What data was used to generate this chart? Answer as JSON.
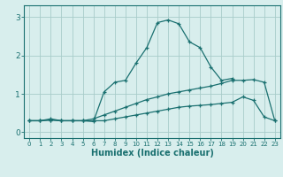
{
  "xlabel": "Humidex (Indice chaleur)",
  "background_color": "#d8eeed",
  "grid_color": "#a8ccca",
  "line_color": "#1a7070",
  "x_values": [
    0,
    1,
    2,
    3,
    4,
    5,
    6,
    7,
    8,
    9,
    10,
    11,
    12,
    13,
    14,
    15,
    16,
    17,
    18,
    19,
    20,
    21,
    22,
    23
  ],
  "line1": [
    0.3,
    0.3,
    0.35,
    0.3,
    0.3,
    0.3,
    0.28,
    1.05,
    1.3,
    1.35,
    1.8,
    2.2,
    2.85,
    2.92,
    2.82,
    2.35,
    2.2,
    1.7,
    1.35,
    1.4,
    null,
    null,
    null,
    null
  ],
  "line2": [
    0.3,
    0.3,
    0.32,
    0.3,
    0.3,
    0.3,
    0.35,
    0.45,
    0.55,
    0.65,
    0.75,
    0.85,
    0.92,
    1.0,
    1.05,
    1.1,
    1.15,
    1.2,
    1.27,
    1.35,
    1.35,
    1.37,
    1.3,
    0.3
  ],
  "line3": [
    0.3,
    0.3,
    0.32,
    0.3,
    0.3,
    0.3,
    0.3,
    0.3,
    0.35,
    0.4,
    0.45,
    0.5,
    0.55,
    0.6,
    0.65,
    0.68,
    0.7,
    0.72,
    0.75,
    0.78,
    0.92,
    0.83,
    0.4,
    0.3
  ],
  "ylim": [
    -0.15,
    3.3
  ],
  "xlim": [
    -0.5,
    23.5
  ],
  "yticks": [
    0,
    1,
    2,
    3
  ],
  "xticks": [
    0,
    1,
    2,
    3,
    4,
    5,
    6,
    7,
    8,
    9,
    10,
    11,
    12,
    13,
    14,
    15,
    16,
    17,
    18,
    19,
    20,
    21,
    22,
    23
  ]
}
